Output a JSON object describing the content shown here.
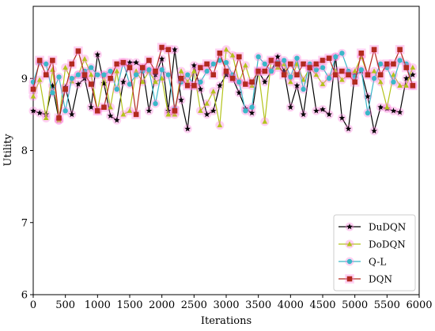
{
  "chart_data": {
    "type": "line",
    "title": "",
    "xlabel": "Iterations",
    "ylabel": "Utility",
    "xlim": [
      0,
      6000
    ],
    "ylim": [
      6,
      10
    ],
    "xticks": [
      0,
      500,
      1000,
      1500,
      2000,
      2500,
      3000,
      3500,
      4000,
      4500,
      5000,
      5500,
      6000
    ],
    "yticks": [
      6,
      7,
      8,
      9
    ],
    "grid": false,
    "legend_position": "bottom-right",
    "x": [
      0,
      100,
      200,
      300,
      400,
      500,
      600,
      700,
      800,
      900,
      1000,
      1100,
      1200,
      1300,
      1400,
      1500,
      1600,
      1700,
      1800,
      1900,
      2000,
      2100,
      2200,
      2300,
      2400,
      2500,
      2600,
      2700,
      2800,
      2900,
      3000,
      3100,
      3200,
      3300,
      3400,
      3500,
      3600,
      3700,
      3800,
      3900,
      4000,
      4100,
      4200,
      4300,
      4400,
      4500,
      4600,
      4700,
      4800,
      4900,
      5000,
      5100,
      5200,
      5300,
      5400,
      5500,
      5600,
      5700,
      5800,
      5900
    ],
    "series": [
      {
        "name": "DuDQN",
        "color": "#000000",
        "marker": "star",
        "values": [
          8.55,
          8.52,
          8.5,
          8.9,
          8.42,
          8.88,
          8.5,
          8.92,
          9.0,
          8.6,
          9.33,
          8.93,
          8.48,
          8.42,
          8.95,
          9.22,
          9.22,
          9.15,
          8.55,
          9.05,
          9.27,
          8.55,
          9.4,
          8.7,
          8.3,
          9.18,
          8.85,
          8.5,
          8.55,
          8.9,
          9.05,
          9.0,
          8.8,
          8.58,
          8.52,
          9.1,
          8.95,
          9.1,
          9.3,
          9.1,
          8.6,
          8.9,
          8.5,
          9.15,
          8.55,
          8.57,
          8.5,
          9.3,
          8.45,
          8.3,
          9.05,
          9.1,
          8.75,
          8.27,
          8.6,
          8.58,
          8.55,
          8.53,
          9.0,
          9.05
        ]
      },
      {
        "name": "DoDQN",
        "color": "#b3c31a",
        "marker": "triangle",
        "values": [
          8.75,
          8.98,
          8.45,
          9.12,
          8.42,
          9.15,
          8.96,
          9.05,
          9.27,
          9.05,
          8.55,
          9.05,
          8.6,
          9.1,
          8.5,
          8.55,
          9.1,
          8.95,
          9.1,
          8.95,
          9.0,
          8.5,
          8.5,
          9.1,
          8.95,
          9.1,
          8.55,
          8.65,
          8.82,
          8.35,
          9.4,
          9.32,
          8.95,
          9.18,
          8.9,
          9.1,
          8.4,
          9.25,
          9.15,
          9.2,
          8.95,
          9.2,
          8.98,
          9.15,
          9.05,
          8.92,
          9.02,
          9.1,
          8.98,
          9.05,
          9.1,
          9.3,
          9.05,
          9.1,
          8.95,
          8.6,
          9.05,
          8.9,
          8.9,
          9.15
        ]
      },
      {
        "name": "Q-L",
        "color": "#3ab8c8",
        "marker": "circle",
        "values": [
          8.95,
          9.22,
          9.2,
          8.8,
          9.02,
          8.55,
          9.0,
          9.05,
          9.1,
          9.15,
          9.05,
          9.05,
          9.1,
          8.85,
          9.22,
          8.92,
          9.05,
          9.1,
          9.12,
          8.65,
          9.12,
          9.05,
          8.58,
          8.95,
          9.05,
          8.9,
          8.95,
          9.1,
          9.2,
          9.25,
          9.22,
          9.05,
          8.95,
          8.55,
          8.6,
          9.3,
          9.2,
          9.1,
          9.22,
          9.25,
          9.02,
          9.28,
          8.85,
          9.2,
          9.12,
          9.15,
          9.0,
          9.3,
          9.35,
          9.1,
          9.02,
          9.12,
          8.52,
          9.0,
          9.2,
          9.15,
          8.95,
          9.25,
          9.2,
          8.9
        ]
      },
      {
        "name": "DQN",
        "color": "#b22a1f",
        "marker": "square",
        "values": [
          8.85,
          9.25,
          9.05,
          9.25,
          8.45,
          8.85,
          9.2,
          9.38,
          9.05,
          8.92,
          8.55,
          8.6,
          9.0,
          9.2,
          9.22,
          9.15,
          8.5,
          9.15,
          9.25,
          9.1,
          9.43,
          9.4,
          8.55,
          9.0,
          8.9,
          8.9,
          9.15,
          9.2,
          9.05,
          9.35,
          9.1,
          9.0,
          9.3,
          8.92,
          8.95,
          9.1,
          9.1,
          9.25,
          9.2,
          9.05,
          9.2,
          9.05,
          9.2,
          9.15,
          9.2,
          9.25,
          9.28,
          9.05,
          9.1,
          9.05,
          8.95,
          9.35,
          9.05,
          9.4,
          9.05,
          9.2,
          9.2,
          9.4,
          9.15,
          8.9
        ]
      }
    ]
  }
}
